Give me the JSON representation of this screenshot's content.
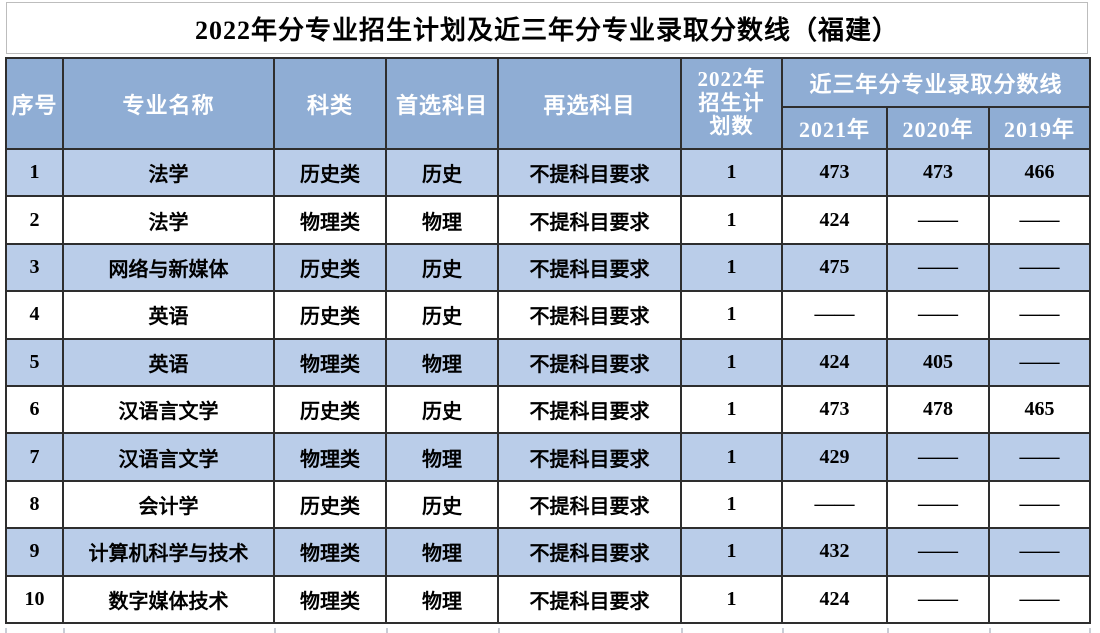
{
  "title": "2022年分专业招生计划及近三年分专业录取分数线（福建）",
  "colors": {
    "header_bg": "#8FADD4",
    "row_stripe_bg": "#BACDE9",
    "row_plain_bg": "#FFFFFF",
    "grid_border": "#2E2E2E",
    "header_text": "#FFFFFF",
    "body_text": "#000000",
    "error_marker_green": "#1E9E1E"
  },
  "table": {
    "headers": {
      "index": "序号",
      "major": "专业名称",
      "category": "科类",
      "first_subject": "首选科目",
      "second_subject": "再选科目",
      "plan_2022": "2022年\n招生计\n划数",
      "scores_group": "近三年分专业录取分数线",
      "y2021": "2021年",
      "y2020": "2020年",
      "y2019": "2019年"
    },
    "rows": [
      {
        "index": "1",
        "major": "法学",
        "category": "历史类",
        "first_subject": "历史",
        "second_subject": "不提科目要求",
        "plan": "1",
        "score_2021": "473",
        "score_2020": "473",
        "score_2019": "466"
      },
      {
        "index": "2",
        "major": "法学",
        "category": "物理类",
        "first_subject": "物理",
        "second_subject": "不提科目要求",
        "plan": "1",
        "score_2021": "424",
        "score_2020": "——",
        "score_2019": "——"
      },
      {
        "index": "3",
        "major": "网络与新媒体",
        "category": "历史类",
        "first_subject": "历史",
        "second_subject": "不提科目要求",
        "plan": "1",
        "score_2021": "475",
        "score_2020": "——",
        "score_2019": "——"
      },
      {
        "index": "4",
        "major": "英语",
        "category": "历史类",
        "first_subject": "历史",
        "second_subject": "不提科目要求",
        "plan": "1",
        "score_2021": "——",
        "score_2020": "——",
        "score_2019": "——"
      },
      {
        "index": "5",
        "major": "英语",
        "category": "物理类",
        "first_subject": "物理",
        "second_subject": "不提科目要求",
        "plan": "1",
        "score_2021": "424",
        "score_2020": "405",
        "score_2019": "——"
      },
      {
        "index": "6",
        "major": "汉语言文学",
        "category": "历史类",
        "first_subject": "历史",
        "second_subject": "不提科目要求",
        "plan": "1",
        "score_2021": "473",
        "score_2020": "478",
        "score_2019": "465"
      },
      {
        "index": "7",
        "major": "汉语言文学",
        "category": "物理类",
        "first_subject": "物理",
        "second_subject": "不提科目要求",
        "plan": "1",
        "score_2021": "429",
        "score_2020": "——",
        "score_2019": "——"
      },
      {
        "index": "8",
        "major": "会计学",
        "category": "历史类",
        "first_subject": "历史",
        "second_subject": "不提科目要求",
        "plan": "1",
        "score_2021": "——",
        "score_2020": "——",
        "score_2019": "——"
      },
      {
        "index": "9",
        "major": "计算机科学与技术",
        "category": "物理类",
        "first_subject": "物理",
        "second_subject": "不提科目要求",
        "plan": "1",
        "score_2021": "432",
        "score_2020": "——",
        "score_2019": "——"
      },
      {
        "index": "10",
        "major": "数字媒体技术",
        "category": "物理类",
        "first_subject": "物理",
        "second_subject": "不提科目要求",
        "plan": "1",
        "score_2021": "424",
        "score_2020": "——",
        "score_2019": "——"
      }
    ],
    "corner_marker": {
      "row_index": 10,
      "column": "score_2021"
    }
  },
  "chart_data": {
    "type": "table",
    "title": "2022年分专业招生计划及近三年分专业录取分数线（福建）",
    "columns": [
      "序号",
      "专业名称",
      "科类",
      "首选科目",
      "再选科目",
      "2022年招生计划数",
      "2021年",
      "2020年",
      "2019年"
    ],
    "column_groups": [
      {
        "label": "近三年分专业录取分数线",
        "spans": [
          "2021年",
          "2020年",
          "2019年"
        ]
      }
    ],
    "rows": [
      [
        "1",
        "法学",
        "历史类",
        "历史",
        "不提科目要求",
        "1",
        "473",
        "473",
        "466"
      ],
      [
        "2",
        "法学",
        "物理类",
        "物理",
        "不提科目要求",
        "1",
        "424",
        "——",
        "——"
      ],
      [
        "3",
        "网络与新媒体",
        "历史类",
        "历史",
        "不提科目要求",
        "1",
        "475",
        "——",
        "——"
      ],
      [
        "4",
        "英语",
        "历史类",
        "历史",
        "不提科目要求",
        "1",
        "——",
        "——",
        "——"
      ],
      [
        "5",
        "英语",
        "物理类",
        "物理",
        "不提科目要求",
        "1",
        "424",
        "405",
        "——"
      ],
      [
        "6",
        "汉语言文学",
        "历史类",
        "历史",
        "不提科目要求",
        "1",
        "473",
        "478",
        "465"
      ],
      [
        "7",
        "汉语言文学",
        "物理类",
        "物理",
        "不提科目要求",
        "1",
        "429",
        "——",
        "——"
      ],
      [
        "8",
        "会计学",
        "历史类",
        "历史",
        "不提科目要求",
        "1",
        "——",
        "——",
        "——"
      ],
      [
        "9",
        "计算机科学与技术",
        "物理类",
        "物理",
        "不提科目要求",
        "1",
        "432",
        "——",
        "——"
      ],
      [
        "10",
        "数字媒体技术",
        "物理类",
        "物理",
        "不提科目要求",
        "1",
        "424",
        "——",
        "——"
      ]
    ]
  }
}
